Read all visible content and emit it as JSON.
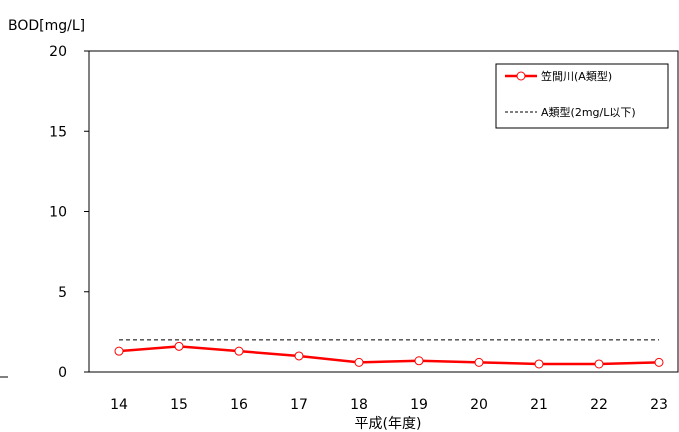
{
  "chart_data": {
    "type": "line",
    "ylabel": "BOD[mg/L]",
    "xlabel": "平成(年度)",
    "categories": [
      "14",
      "15",
      "16",
      "17",
      "18",
      "19",
      "20",
      "21",
      "22",
      "23"
    ],
    "ylim": [
      0,
      20
    ],
    "yticks": [
      "0",
      "5",
      "10",
      "15",
      "20"
    ],
    "grid": false,
    "legend_position": "top-right",
    "series": [
      {
        "name": "笠間川(A類型)",
        "values": [
          1.3,
          1.6,
          1.3,
          1.0,
          0.6,
          0.7,
          0.6,
          0.5,
          0.5,
          0.6
        ],
        "color": "#ff0000",
        "marker": "open-circle",
        "line_style": "solid"
      },
      {
        "name": "A類型(2mg/L以下)",
        "values": [
          2,
          2,
          2,
          2,
          2,
          2,
          2,
          2,
          2,
          2
        ],
        "color": "#000000",
        "marker": "none",
        "line_style": "dashed"
      }
    ]
  }
}
